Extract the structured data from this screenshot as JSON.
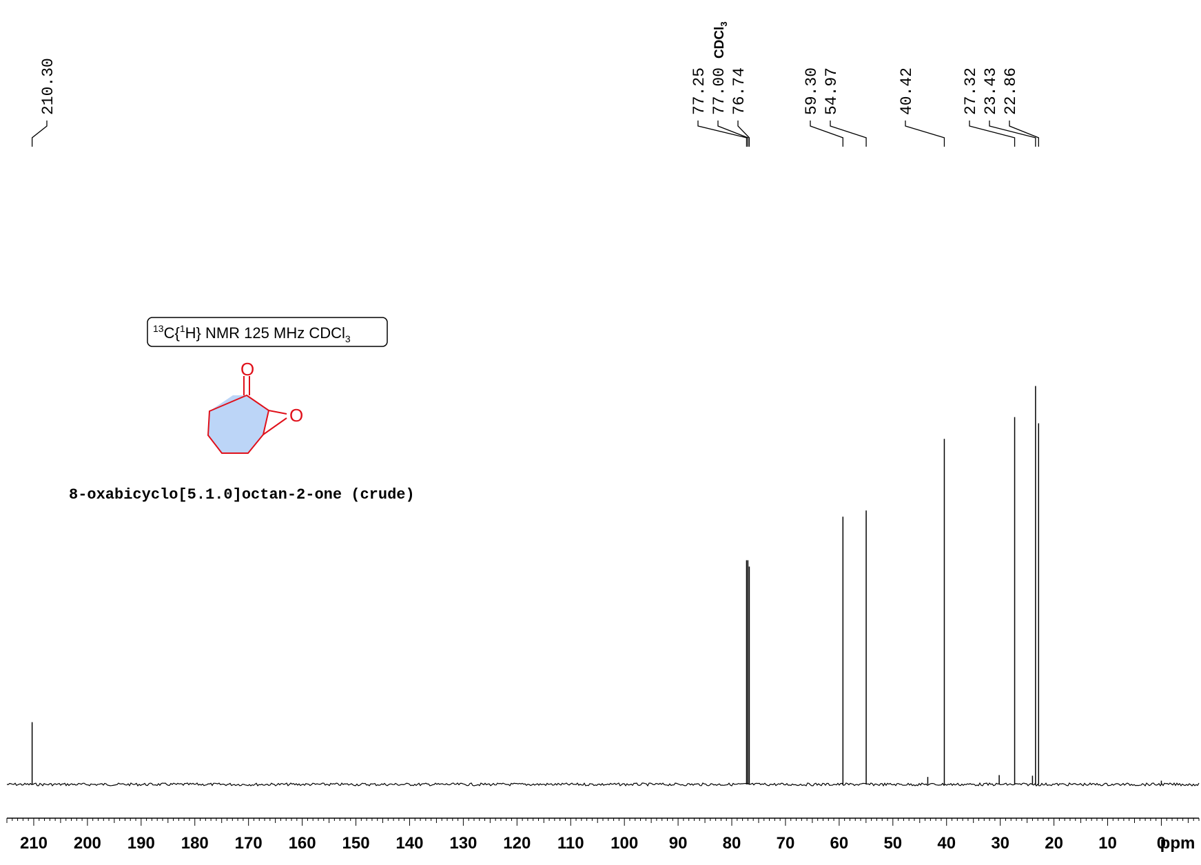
{
  "chart_data": {
    "type": "line",
    "title": "",
    "xlabel": "ppm",
    "ylabel": "",
    "xlim": [
      215,
      -7
    ],
    "x_reversed": true,
    "grid": false,
    "x_ticks": [
      210,
      200,
      190,
      180,
      170,
      160,
      150,
      140,
      130,
      120,
      110,
      100,
      90,
      80,
      70,
      60,
      50,
      40,
      30,
      20,
      10,
      0
    ],
    "tick_labels": [
      "210",
      "200",
      "190",
      "180",
      "170",
      "160",
      "150",
      "140",
      "130",
      "120",
      "110",
      "100",
      "90",
      "80",
      "70",
      "60",
      "50",
      "40",
      "30",
      "20",
      "10",
      "0"
    ],
    "peaks": [
      {
        "ppm": 210.3,
        "intensity": 0.1
      },
      {
        "ppm": 77.25,
        "intensity": 0.36
      },
      {
        "ppm": 77.0,
        "intensity": 0.36
      },
      {
        "ppm": 76.74,
        "intensity": 0.35
      },
      {
        "ppm": 59.3,
        "intensity": 0.43
      },
      {
        "ppm": 54.97,
        "intensity": 0.44
      },
      {
        "ppm": 43.5,
        "intensity": 0.012
      },
      {
        "ppm": 40.42,
        "intensity": 0.555
      },
      {
        "ppm": 30.2,
        "intensity": 0.015
      },
      {
        "ppm": 27.32,
        "intensity": 0.59
      },
      {
        "ppm": 24.0,
        "intensity": 0.014
      },
      {
        "ppm": 23.43,
        "intensity": 0.64
      },
      {
        "ppm": 22.86,
        "intensity": 0.58
      },
      {
        "ppm": 0.0,
        "intensity": 0.006
      }
    ],
    "peak_labels": [
      {
        "ppm": 210.3,
        "text": "210.30"
      },
      {
        "ppm": 77.25,
        "text": "77.25"
      },
      {
        "ppm": 77.0,
        "text": "77.00",
        "tag": "CDCl3"
      },
      {
        "ppm": 76.74,
        "text": "76.74"
      },
      {
        "ppm": 59.3,
        "text": "59.30"
      },
      {
        "ppm": 54.97,
        "text": "54.97"
      },
      {
        "ppm": 40.42,
        "text": "40.42"
      },
      {
        "ppm": 27.32,
        "text": "27.32"
      },
      {
        "ppm": 23.43,
        "text": "23.43"
      },
      {
        "ppm": 22.86,
        "text": "22.86"
      }
    ],
    "annotation_box": {
      "prefix": "13",
      "mid1": "C{",
      "sup2": "1",
      "mid2": "H} NMR 125 MHz CDCl",
      "sub": "3"
    },
    "solvent_tag": {
      "text": "CDCl",
      "sub": "3"
    },
    "compound_name": "8-oxabicyclo[5.1.0]octan-2-one (crude)",
    "structure_atoms": {
      "carbonyl_O": "O",
      "epoxide_O": "O"
    },
    "colors": {
      "trace": "#000000",
      "structure": "#e0101a",
      "ring_fill": "#bcd5f7"
    }
  }
}
